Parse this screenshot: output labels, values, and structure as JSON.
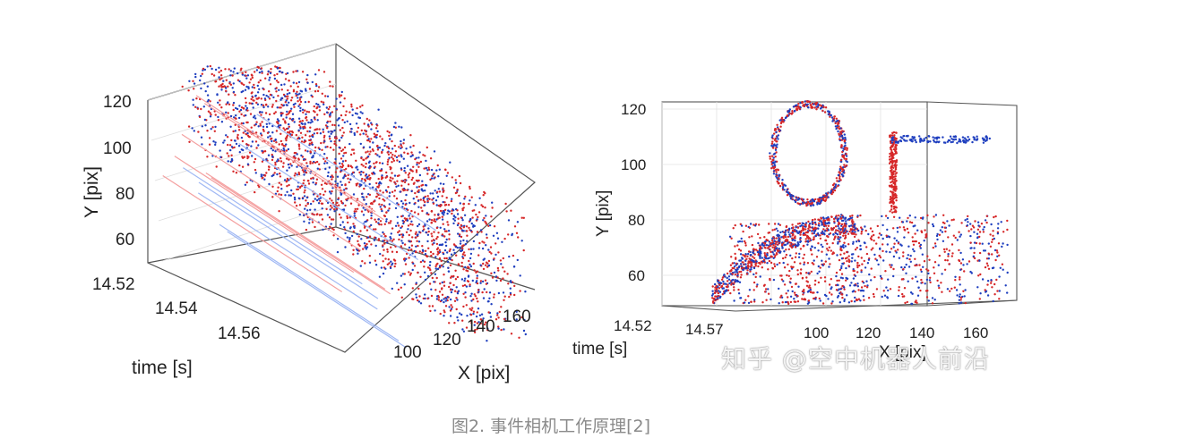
{
  "chart_data": [
    {
      "type": "scatter",
      "title": "",
      "xlabel": "X [pix]",
      "ylabel": "Y [pix]",
      "zlabel": "time [s]",
      "y_ticks": [
        "60",
        "80",
        "100",
        "120"
      ],
      "x_ticks": [
        "100",
        "120",
        "140",
        "160"
      ],
      "time_ticks": [
        "14.52",
        "14.54",
        "14.56"
      ],
      "series": [
        {
          "color": "#d62728"
        },
        {
          "color": "#1f3fbf"
        }
      ]
    },
    {
      "type": "scatter",
      "title": "",
      "xlabel": "X [pix]",
      "ylabel": "Y [pix]",
      "zlabel": "time [s]",
      "y_ticks": [
        "60",
        "80",
        "100",
        "120"
      ],
      "x_ticks": [
        "100",
        "120",
        "140",
        "160"
      ],
      "time_ticks": [
        "14.52",
        "14.57"
      ],
      "series": [
        {
          "color": "#d62728"
        },
        {
          "color": "#1f3fbf"
        }
      ]
    }
  ],
  "watermark": "知乎 @空中机器人前沿",
  "caption": "图2. 事件相机工作原理[2]"
}
